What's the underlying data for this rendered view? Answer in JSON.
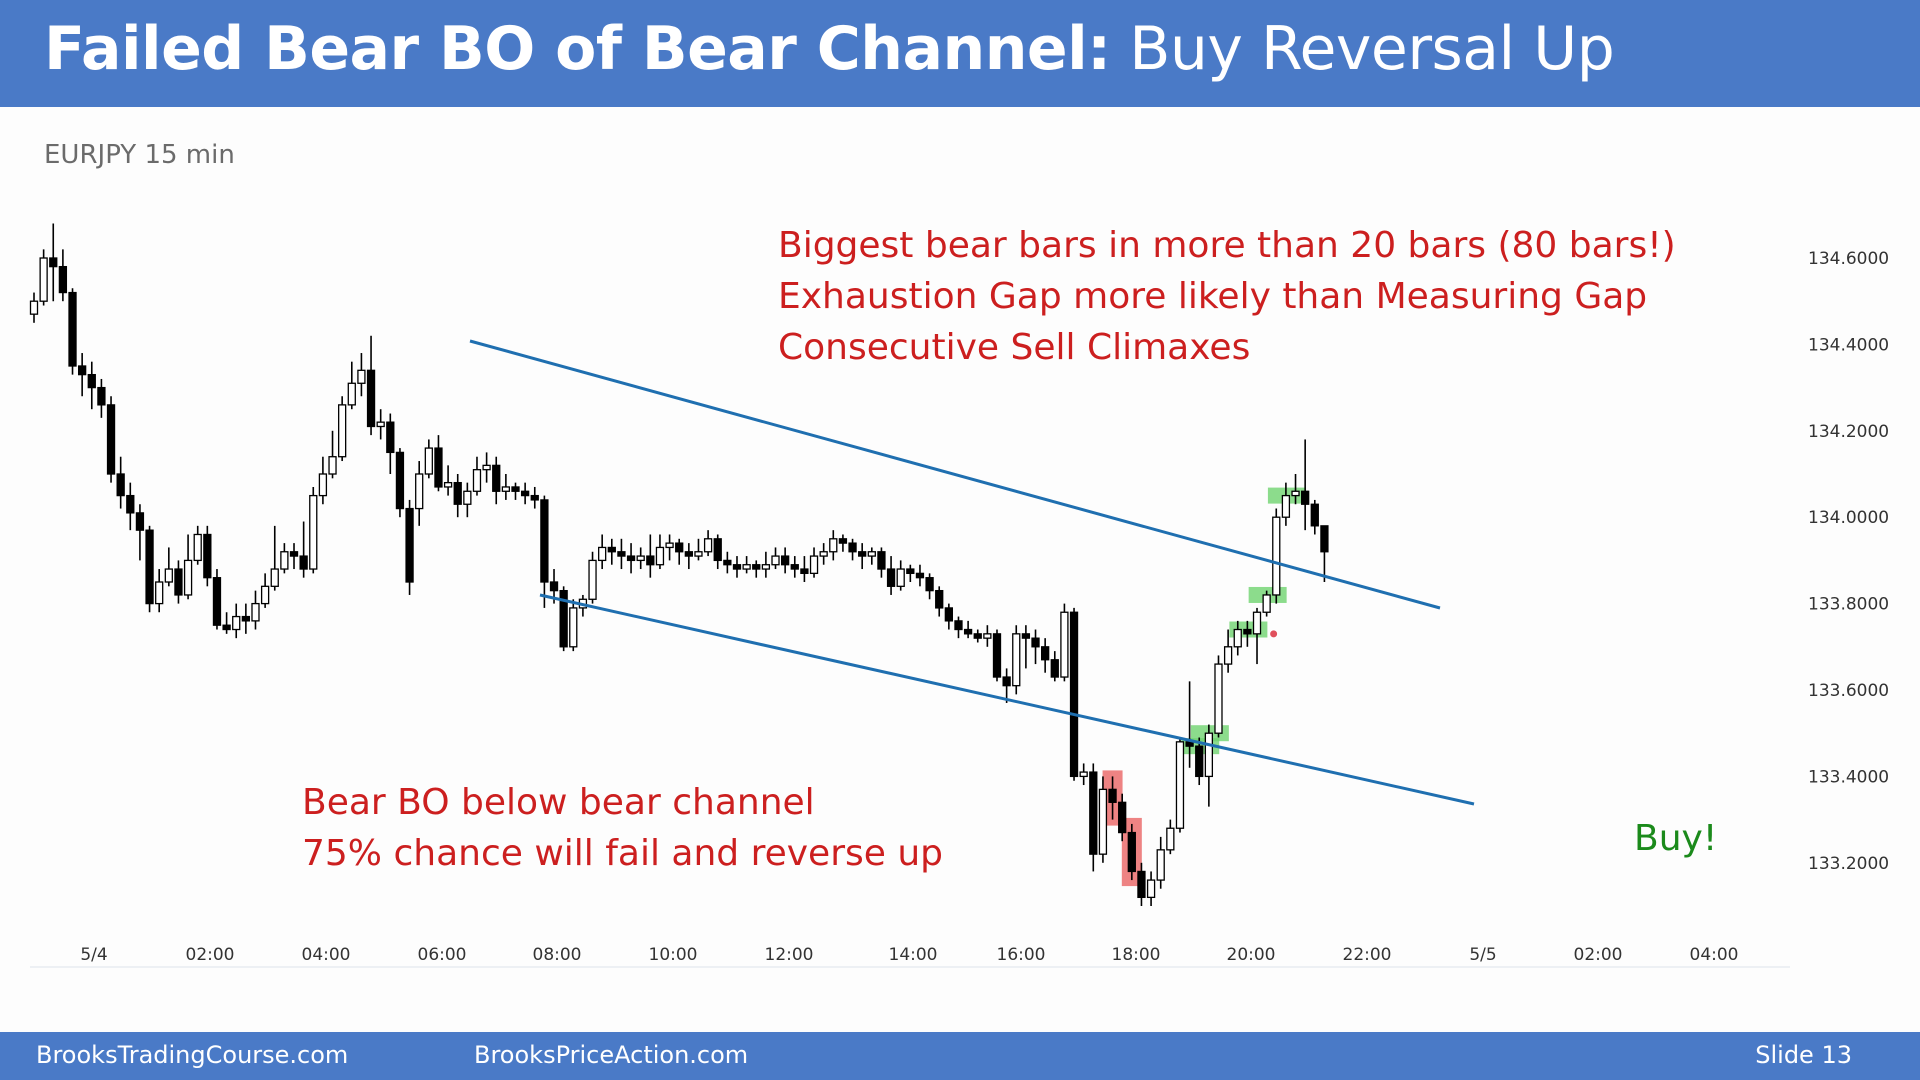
{
  "title": {
    "bold": "Failed Bear BO of Bear Channel:",
    "rest": " Buy Reversal Up"
  },
  "symbol": "EURJPY 15 min",
  "notes": {
    "top": [
      "Biggest bear bars in more than 20 bars (80 bars!)",
      "Exhaustion Gap more likely than Measuring Gap",
      "Consecutive Sell Climaxes"
    ],
    "bottom": [
      "Bear BO below bear channel",
      "75% chance will fail and reverse up"
    ],
    "buy": "Buy!"
  },
  "footer": {
    "left": "BrooksTradingCourse.com",
    "middle": "BrooksPriceAction.com",
    "right": "Slide  13"
  },
  "colors": {
    "header": "#4a7ac7",
    "note": "#cc1f1f",
    "buy": "#1b8a1b",
    "channel": "#1f6fb0",
    "highlight_red": "#e85a5a",
    "highlight_green": "#6fd36f"
  },
  "chart_data": {
    "type": "candlestick",
    "instrument": "EURJPY",
    "timeframe": "15 min",
    "ylim": [
      133.08,
      134.72
    ],
    "y_ticks": [
      "134.6000",
      "134.4000",
      "134.2000",
      "134.0000",
      "133.8000",
      "133.6000",
      "133.4000",
      "133.2000"
    ],
    "x_ticks": [
      "5/4",
      "02:00",
      "04:00",
      "06:00",
      "08:00",
      "10:00",
      "12:00",
      "14:00",
      "16:00",
      "18:00",
      "20:00",
      "22:00",
      "5/5",
      "02:00",
      "04:00"
    ],
    "legend": "none",
    "grid": false,
    "channel_lines": [
      {
        "name": "upper",
        "from": [
          "06:30",
          134.42
        ],
        "to": [
          "23:15",
          133.79
        ]
      },
      {
        "name": "lower",
        "from": [
          "07:30",
          133.82
        ],
        "to": [
          "23:30",
          133.35
        ]
      }
    ],
    "highlights": [
      {
        "bars": "5/4 23:30",
        "color": "red"
      },
      {
        "bars": "5/5 00:00",
        "color": "red"
      },
      {
        "bars": "5/5 01:45",
        "color": "green"
      },
      {
        "bars": "5/5 02:00",
        "color": "green"
      },
      {
        "bars": "5/5 03:00",
        "color": "green"
      },
      {
        "bars": "5/5 03:30",
        "color": "green"
      },
      {
        "bars": "5/5 03:45",
        "color": "green"
      }
    ],
    "bars": [
      [
        134.47,
        134.5,
        134.45,
        134.52
      ],
      [
        134.5,
        134.6,
        134.49,
        134.62
      ],
      [
        134.6,
        134.58,
        134.5,
        134.68
      ],
      [
        134.58,
        134.52,
        134.5,
        134.62
      ],
      [
        134.52,
        134.35,
        134.33,
        134.53
      ],
      [
        134.35,
        134.33,
        134.28,
        134.38
      ],
      [
        134.33,
        134.3,
        134.25,
        134.36
      ],
      [
        134.3,
        134.26,
        134.23,
        134.32
      ],
      [
        134.26,
        134.1,
        134.08,
        134.28
      ],
      [
        134.1,
        134.05,
        134.02,
        134.14
      ],
      [
        134.05,
        134.01,
        133.97,
        134.08
      ],
      [
        134.01,
        133.97,
        133.9,
        134.03
      ],
      [
        133.97,
        133.8,
        133.78,
        133.98
      ],
      [
        133.8,
        133.85,
        133.78,
        133.88
      ],
      [
        133.85,
        133.88,
        133.84,
        133.93
      ],
      [
        133.88,
        133.82,
        133.8,
        133.9
      ],
      [
        133.82,
        133.9,
        133.81,
        133.96
      ],
      [
        133.9,
        133.96,
        133.89,
        133.98
      ],
      [
        133.96,
        133.86,
        133.84,
        133.98
      ],
      [
        133.86,
        133.75,
        133.74,
        133.88
      ],
      [
        133.75,
        133.74,
        133.73,
        133.78
      ],
      [
        133.74,
        133.77,
        133.72,
        133.8
      ],
      [
        133.77,
        133.76,
        133.73,
        133.8
      ],
      [
        133.76,
        133.8,
        133.74,
        133.83
      ],
      [
        133.8,
        133.84,
        133.79,
        133.87
      ],
      [
        133.84,
        133.88,
        133.83,
        133.98
      ],
      [
        133.88,
        133.92,
        133.87,
        133.94
      ],
      [
        133.92,
        133.91,
        133.88,
        133.94
      ],
      [
        133.91,
        133.88,
        133.86,
        133.99
      ],
      [
        133.88,
        134.05,
        133.87,
        134.07
      ],
      [
        134.05,
        134.1,
        134.03,
        134.14
      ],
      [
        134.1,
        134.14,
        134.09,
        134.2
      ],
      [
        134.14,
        134.26,
        134.13,
        134.28
      ],
      [
        134.26,
        134.31,
        134.25,
        134.36
      ],
      [
        134.31,
        134.34,
        134.28,
        134.38
      ],
      [
        134.34,
        134.21,
        134.19,
        134.42
      ],
      [
        134.21,
        134.22,
        134.18,
        134.25
      ],
      [
        134.22,
        134.15,
        134.1,
        134.24
      ],
      [
        134.15,
        134.02,
        134.0,
        134.16
      ],
      [
        134.02,
        133.85,
        133.82,
        134.04
      ],
      [
        134.02,
        134.1,
        133.98,
        134.13
      ],
      [
        134.1,
        134.16,
        134.09,
        134.18
      ],
      [
        134.16,
        134.07,
        134.06,
        134.19
      ],
      [
        134.07,
        134.08,
        134.05,
        134.12
      ],
      [
        134.08,
        134.03,
        134.0,
        134.1
      ],
      [
        134.03,
        134.06,
        134.0,
        134.08
      ],
      [
        134.06,
        134.11,
        134.05,
        134.14
      ],
      [
        134.11,
        134.12,
        134.08,
        134.15
      ],
      [
        134.12,
        134.06,
        134.03,
        134.14
      ],
      [
        134.06,
        134.07,
        134.04,
        134.1
      ],
      [
        134.07,
        134.06,
        134.04,
        134.08
      ],
      [
        134.06,
        134.05,
        134.03,
        134.08
      ],
      [
        134.05,
        134.04,
        134.02,
        134.07
      ],
      [
        134.04,
        133.85,
        133.79,
        134.05
      ],
      [
        133.85,
        133.83,
        133.8,
        133.88
      ],
      [
        133.83,
        133.7,
        133.69,
        133.84
      ],
      [
        133.7,
        133.79,
        133.69,
        133.81
      ],
      [
        133.79,
        133.81,
        133.77,
        133.82
      ],
      [
        133.81,
        133.9,
        133.8,
        133.92
      ],
      [
        133.9,
        133.93,
        133.88,
        133.96
      ],
      [
        133.93,
        133.92,
        133.89,
        133.95
      ],
      [
        133.92,
        133.91,
        133.88,
        133.95
      ],
      [
        133.91,
        133.9,
        133.87,
        133.94
      ],
      [
        133.9,
        133.91,
        133.88,
        133.93
      ],
      [
        133.91,
        133.89,
        133.86,
        133.96
      ],
      [
        133.89,
        133.93,
        133.88,
        133.96
      ],
      [
        133.93,
        133.94,
        133.9,
        133.96
      ],
      [
        133.94,
        133.92,
        133.89,
        133.95
      ],
      [
        133.92,
        133.91,
        133.88,
        133.94
      ],
      [
        133.91,
        133.92,
        133.9,
        133.95
      ],
      [
        133.92,
        133.95,
        133.91,
        133.97
      ],
      [
        133.95,
        133.9,
        133.88,
        133.96
      ],
      [
        133.9,
        133.89,
        133.87,
        133.92
      ],
      [
        133.89,
        133.88,
        133.86,
        133.91
      ],
      [
        133.88,
        133.89,
        133.87,
        133.91
      ],
      [
        133.89,
        133.88,
        133.86,
        133.9
      ],
      [
        133.88,
        133.89,
        133.86,
        133.92
      ],
      [
        133.89,
        133.91,
        133.88,
        133.93
      ],
      [
        133.91,
        133.89,
        133.87,
        133.93
      ],
      [
        133.89,
        133.88,
        133.86,
        133.91
      ],
      [
        133.88,
        133.87,
        133.85,
        133.91
      ],
      [
        133.87,
        133.91,
        133.86,
        133.93
      ],
      [
        133.91,
        133.92,
        133.89,
        133.94
      ],
      [
        133.92,
        133.95,
        133.9,
        133.97
      ],
      [
        133.95,
        133.94,
        133.92,
        133.96
      ],
      [
        133.94,
        133.92,
        133.9,
        133.95
      ],
      [
        133.92,
        133.91,
        133.88,
        133.94
      ],
      [
        133.91,
        133.92,
        133.89,
        133.93
      ],
      [
        133.92,
        133.88,
        133.86,
        133.93
      ],
      [
        133.88,
        133.84,
        133.82,
        133.91
      ],
      [
        133.84,
        133.88,
        133.83,
        133.9
      ],
      [
        133.88,
        133.87,
        133.85,
        133.89
      ],
      [
        133.87,
        133.86,
        133.84,
        133.89
      ],
      [
        133.86,
        133.83,
        133.81,
        133.87
      ],
      [
        133.83,
        133.79,
        133.77,
        133.84
      ],
      [
        133.79,
        133.76,
        133.74,
        133.8
      ],
      [
        133.76,
        133.74,
        133.72,
        133.77
      ],
      [
        133.74,
        133.73,
        133.72,
        133.76
      ],
      [
        133.73,
        133.72,
        133.71,
        133.74
      ],
      [
        133.72,
        133.73,
        133.7,
        133.75
      ],
      [
        133.73,
        133.63,
        133.62,
        133.74
      ],
      [
        133.63,
        133.61,
        133.57,
        133.65
      ],
      [
        133.61,
        133.73,
        133.59,
        133.75
      ],
      [
        133.73,
        133.72,
        133.65,
        133.75
      ],
      [
        133.72,
        133.7,
        133.66,
        133.74
      ],
      [
        133.7,
        133.67,
        133.64,
        133.72
      ],
      [
        133.67,
        133.63,
        133.62,
        133.69
      ],
      [
        133.63,
        133.78,
        133.62,
        133.8
      ],
      [
        133.78,
        133.4,
        133.39,
        133.79
      ],
      [
        133.4,
        133.41,
        133.38,
        133.43
      ],
      [
        133.41,
        133.22,
        133.18,
        133.43
      ],
      [
        133.22,
        133.37,
        133.2,
        133.4
      ],
      [
        133.37,
        133.34,
        133.3,
        133.4
      ],
      [
        133.34,
        133.27,
        133.25,
        133.36
      ],
      [
        133.27,
        133.18,
        133.16,
        133.29
      ],
      [
        133.18,
        133.12,
        133.1,
        133.2
      ],
      [
        133.12,
        133.16,
        133.1,
        133.18
      ],
      [
        133.16,
        133.23,
        133.14,
        133.26
      ],
      [
        133.23,
        133.28,
        133.22,
        133.3
      ],
      [
        133.28,
        133.48,
        133.27,
        133.49
      ],
      [
        133.48,
        133.47,
        133.42,
        133.62
      ],
      [
        133.47,
        133.4,
        133.38,
        133.49
      ],
      [
        133.4,
        133.5,
        133.33,
        133.52
      ],
      [
        133.5,
        133.66,
        133.49,
        133.68
      ],
      [
        133.66,
        133.7,
        133.64,
        133.74
      ],
      [
        133.7,
        133.74,
        133.68,
        133.76
      ],
      [
        133.74,
        133.73,
        133.7,
        133.76
      ],
      [
        133.73,
        133.78,
        133.66,
        133.79
      ],
      [
        133.78,
        133.82,
        133.77,
        133.83
      ],
      [
        133.82,
        134.0,
        133.8,
        134.02
      ],
      [
        134.0,
        134.05,
        133.98,
        134.08
      ],
      [
        134.05,
        134.06,
        134.03,
        134.1
      ],
      [
        134.06,
        134.03,
        133.97,
        134.18
      ],
      [
        134.03,
        133.98,
        133.96,
        134.04
      ],
      [
        133.98,
        133.92,
        133.85,
        133.98
      ]
    ]
  }
}
